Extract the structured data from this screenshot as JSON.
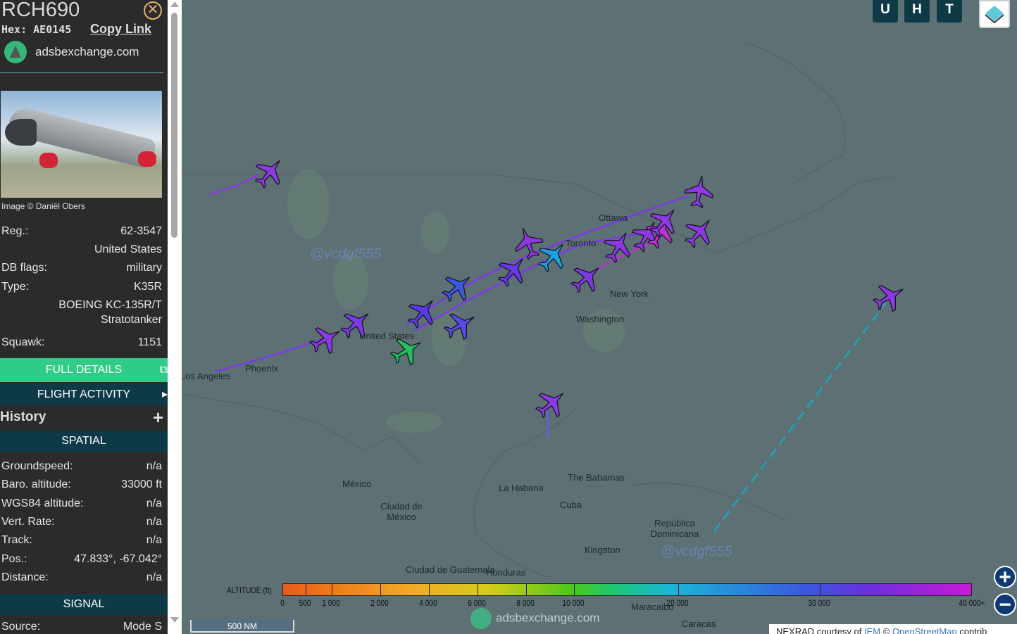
{
  "aircraft": {
    "callsign": "RCH690",
    "hex_label": "Hex:",
    "hex": "AE0145",
    "copy_link": "Copy Link",
    "source_site": "adsbexchange.com",
    "image_credit": "Image © Daniël Obers",
    "reg_label": "Reg.:",
    "reg": "62-3547",
    "country": "United States",
    "db_flags_label": "DB flags:",
    "db_flags": "military",
    "type_label": "Type:",
    "type": "K35R",
    "type_name_1": "BOEING KC-135R/T",
    "type_name_2": "Stratotanker",
    "squawk_label": "Squawk:",
    "squawk": "1151"
  },
  "buttons": {
    "full_details": "FULL DETAILS",
    "flight_activity": "FLIGHT ACTIVITY",
    "history": "History",
    "spatial": "SPATIAL",
    "signal": "SIGNAL"
  },
  "spatial": [
    {
      "label": "Groundspeed:",
      "value": "n/a"
    },
    {
      "label": "Baro. altitude:",
      "value": "33000 ft"
    },
    {
      "label": "WGS84 altitude:",
      "value": "n/a"
    },
    {
      "label": "Vert. Rate:",
      "value": "n/a"
    },
    {
      "label": "Track:",
      "value": "n/a"
    },
    {
      "label": "Pos.:",
      "value": "47.833°, -67.042°"
    },
    {
      "label": "Distance:",
      "value": "n/a"
    }
  ],
  "signal": {
    "source_label": "Source:",
    "source": "Mode S"
  },
  "map": {
    "toggle_buttons": [
      "U",
      "H",
      "T"
    ],
    "cities": [
      "Ottawa",
      "Toronto",
      "New York",
      "Washington",
      "United States",
      "Phoenix",
      "Los Angeles",
      "México",
      "Ciudad de México",
      "La Habana",
      "Cuba",
      "The Bahamas",
      "República Dominicana",
      "Kingston",
      "Ciudad de Guatemala",
      "Honduras",
      "Maracaibo",
      "Caracas"
    ],
    "watermark": "@vcdgf555",
    "legend": {
      "title": "ALTITUDE (ft)",
      "ticks": [
        "0",
        "500",
        "1 000",
        "2 000",
        "4 000",
        "6 000",
        "8 000",
        "10 000",
        "20 000",
        "30 000",
        "40 000+"
      ]
    },
    "brand": "adsbexchange.com",
    "scale": "500 NM",
    "attribution": {
      "text1": "NEXRAD courtesy of ",
      "iem": "IEM",
      "text2": " © ",
      "osm": "OpenStreetMap",
      "text3": " contrib"
    },
    "zoom_in": "+",
    "zoom_out": "−"
  }
}
